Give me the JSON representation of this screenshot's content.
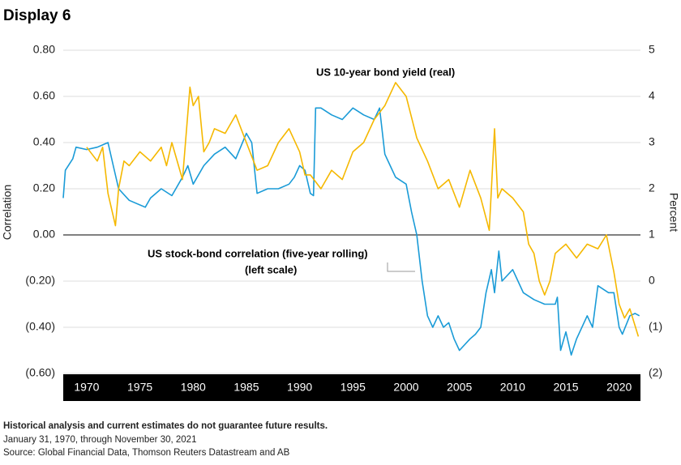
{
  "chart_data": {
    "type": "line",
    "title": "Display 6",
    "ylabel": "Correlation",
    "y2label": "Percent",
    "annotations": [
      "US 10-year bond yield (real)",
      "US stock-bond correlation (five-year rolling)",
      "(left scale)"
    ],
    "footnotes": [
      "Historical analysis and current estimates do not guarantee future results.",
      "January 31, 1970, through November 30, 2021",
      "Source: Global Financial Data, Thomson Reuters Datastream and AB"
    ],
    "xlim": [
      1967.8,
      2022
    ],
    "xticks": [
      1970,
      1975,
      1980,
      1985,
      1990,
      1995,
      2000,
      2005,
      2010,
      2015,
      2020
    ],
    "ylim": [
      -0.6,
      0.8
    ],
    "yticks": [
      {
        "value": 0.8,
        "label": "0.80"
      },
      {
        "value": 0.6,
        "label": "0.60"
      },
      {
        "value": 0.4,
        "label": "0.40"
      },
      {
        "value": 0.2,
        "label": "0.20"
      },
      {
        "value": 0,
        "label": "0.00"
      },
      {
        "value": -0.2,
        "label": "(0.20)"
      },
      {
        "value": -0.4,
        "label": "(0.40)"
      },
      {
        "value": -0.6,
        "label": "(0.60)"
      }
    ],
    "y2lim": [
      -2,
      5
    ],
    "y2ticks": [
      5,
      4,
      3,
      2,
      1,
      0,
      {
        "value": -1,
        "label": "(1)"
      },
      {
        "value": -2,
        "label": "(2)"
      }
    ],
    "grid": true,
    "series": [
      {
        "name": "US stock-bond correlation (five-year rolling)",
        "color": "#1a9bd7",
        "axis": "y",
        "x": [
          1967.8,
          1968,
          1968.7,
          1969,
          1970,
          1971,
          1972,
          1972.5,
          1973,
          1974,
          1975.5,
          1976,
          1977,
          1978,
          1979,
          1979.5,
          1980,
          1981,
          1982,
          1983,
          1984,
          1985,
          1985.5,
          1986,
          1987,
          1988,
          1989,
          1989.5,
          1990,
          1990.5,
          1991,
          1991.3,
          1991.5,
          1992,
          1993,
          1994,
          1995,
          1996,
          1997,
          1997.5,
          1998,
          1998.5,
          1999,
          2000,
          2000.5,
          2001,
          2001.5,
          2002,
          2002.5,
          2003,
          2003.5,
          2004,
          2004.5,
          2005,
          2006,
          2006.5,
          2007,
          2007.5,
          2008,
          2008.3,
          2008.7,
          2009,
          2010,
          2011,
          2012,
          2013,
          2014,
          2014.2,
          2014.5,
          2015,
          2015.5,
          2016,
          2017,
          2017.5,
          2018,
          2019,
          2019.5,
          2020,
          2020.3,
          2021,
          2021.5,
          2021.9
        ],
        "values": [
          0.16,
          0.28,
          0.33,
          0.38,
          0.37,
          0.38,
          0.4,
          0.3,
          0.2,
          0.15,
          0.12,
          0.16,
          0.2,
          0.17,
          0.25,
          0.3,
          0.22,
          0.3,
          0.35,
          0.38,
          0.33,
          0.44,
          0.4,
          0.18,
          0.2,
          0.2,
          0.22,
          0.25,
          0.3,
          0.28,
          0.18,
          0.17,
          0.55,
          0.55,
          0.52,
          0.5,
          0.55,
          0.52,
          0.5,
          0.55,
          0.35,
          0.3,
          0.25,
          0.22,
          0.1,
          0.0,
          -0.2,
          -0.35,
          -0.4,
          -0.35,
          -0.4,
          -0.38,
          -0.45,
          -0.5,
          -0.45,
          -0.43,
          -0.4,
          -0.25,
          -0.15,
          -0.25,
          -0.07,
          -0.2,
          -0.15,
          -0.25,
          -0.28,
          -0.3,
          -0.3,
          -0.27,
          -0.5,
          -0.42,
          -0.52,
          -0.45,
          -0.35,
          -0.4,
          -0.22,
          -0.25,
          -0.25,
          -0.4,
          -0.43,
          -0.35,
          -0.34,
          -0.35
        ]
      },
      {
        "name": "US 10-year bond yield (real)",
        "color": "#f5b800",
        "axis": "y2",
        "x": [
          1970,
          1971,
          1971.5,
          1972,
          1972.7,
          1973,
          1973.5,
          1974,
          1975,
          1976,
          1977,
          1977.5,
          1978,
          1979,
          1979.7,
          1980,
          1980.5,
          1981,
          1981.5,
          1982,
          1983,
          1984,
          1985,
          1986,
          1987,
          1988,
          1989,
          1990,
          1990.5,
          1991,
          1992,
          1993,
          1994,
          1995,
          1996,
          1997,
          1998,
          1999,
          2000,
          2001,
          2002,
          2003,
          2004,
          2005,
          2006,
          2007,
          2007.8,
          2008.3,
          2008.6,
          2009,
          2010,
          2011,
          2011.5,
          2012,
          2012.5,
          2013,
          2013.5,
          2014,
          2015,
          2016,
          2017,
          2018,
          2018.8,
          2019.5,
          2020,
          2020.5,
          2021,
          2021.8
        ],
        "values": [
          2.9,
          2.6,
          2.9,
          1.9,
          1.2,
          2.0,
          2.6,
          2.5,
          2.8,
          2.6,
          2.9,
          2.5,
          3.0,
          2.2,
          4.2,
          3.8,
          4.0,
          2.8,
          3.0,
          3.3,
          3.2,
          3.6,
          3.0,
          2.4,
          2.5,
          3.0,
          3.3,
          2.8,
          2.3,
          2.3,
          2.0,
          2.4,
          2.2,
          2.8,
          3.0,
          3.5,
          3.8,
          4.3,
          4.0,
          3.1,
          2.6,
          2.0,
          2.2,
          1.6,
          2.4,
          1.8,
          1.1,
          3.3,
          1.8,
          2.0,
          1.8,
          1.5,
          0.8,
          0.6,
          0.0,
          -0.3,
          0.0,
          0.6,
          0.8,
          0.5,
          0.8,
          0.7,
          1.0,
          0.2,
          -0.5,
          -0.8,
          -0.6,
          -1.2
        ]
      }
    ]
  }
}
